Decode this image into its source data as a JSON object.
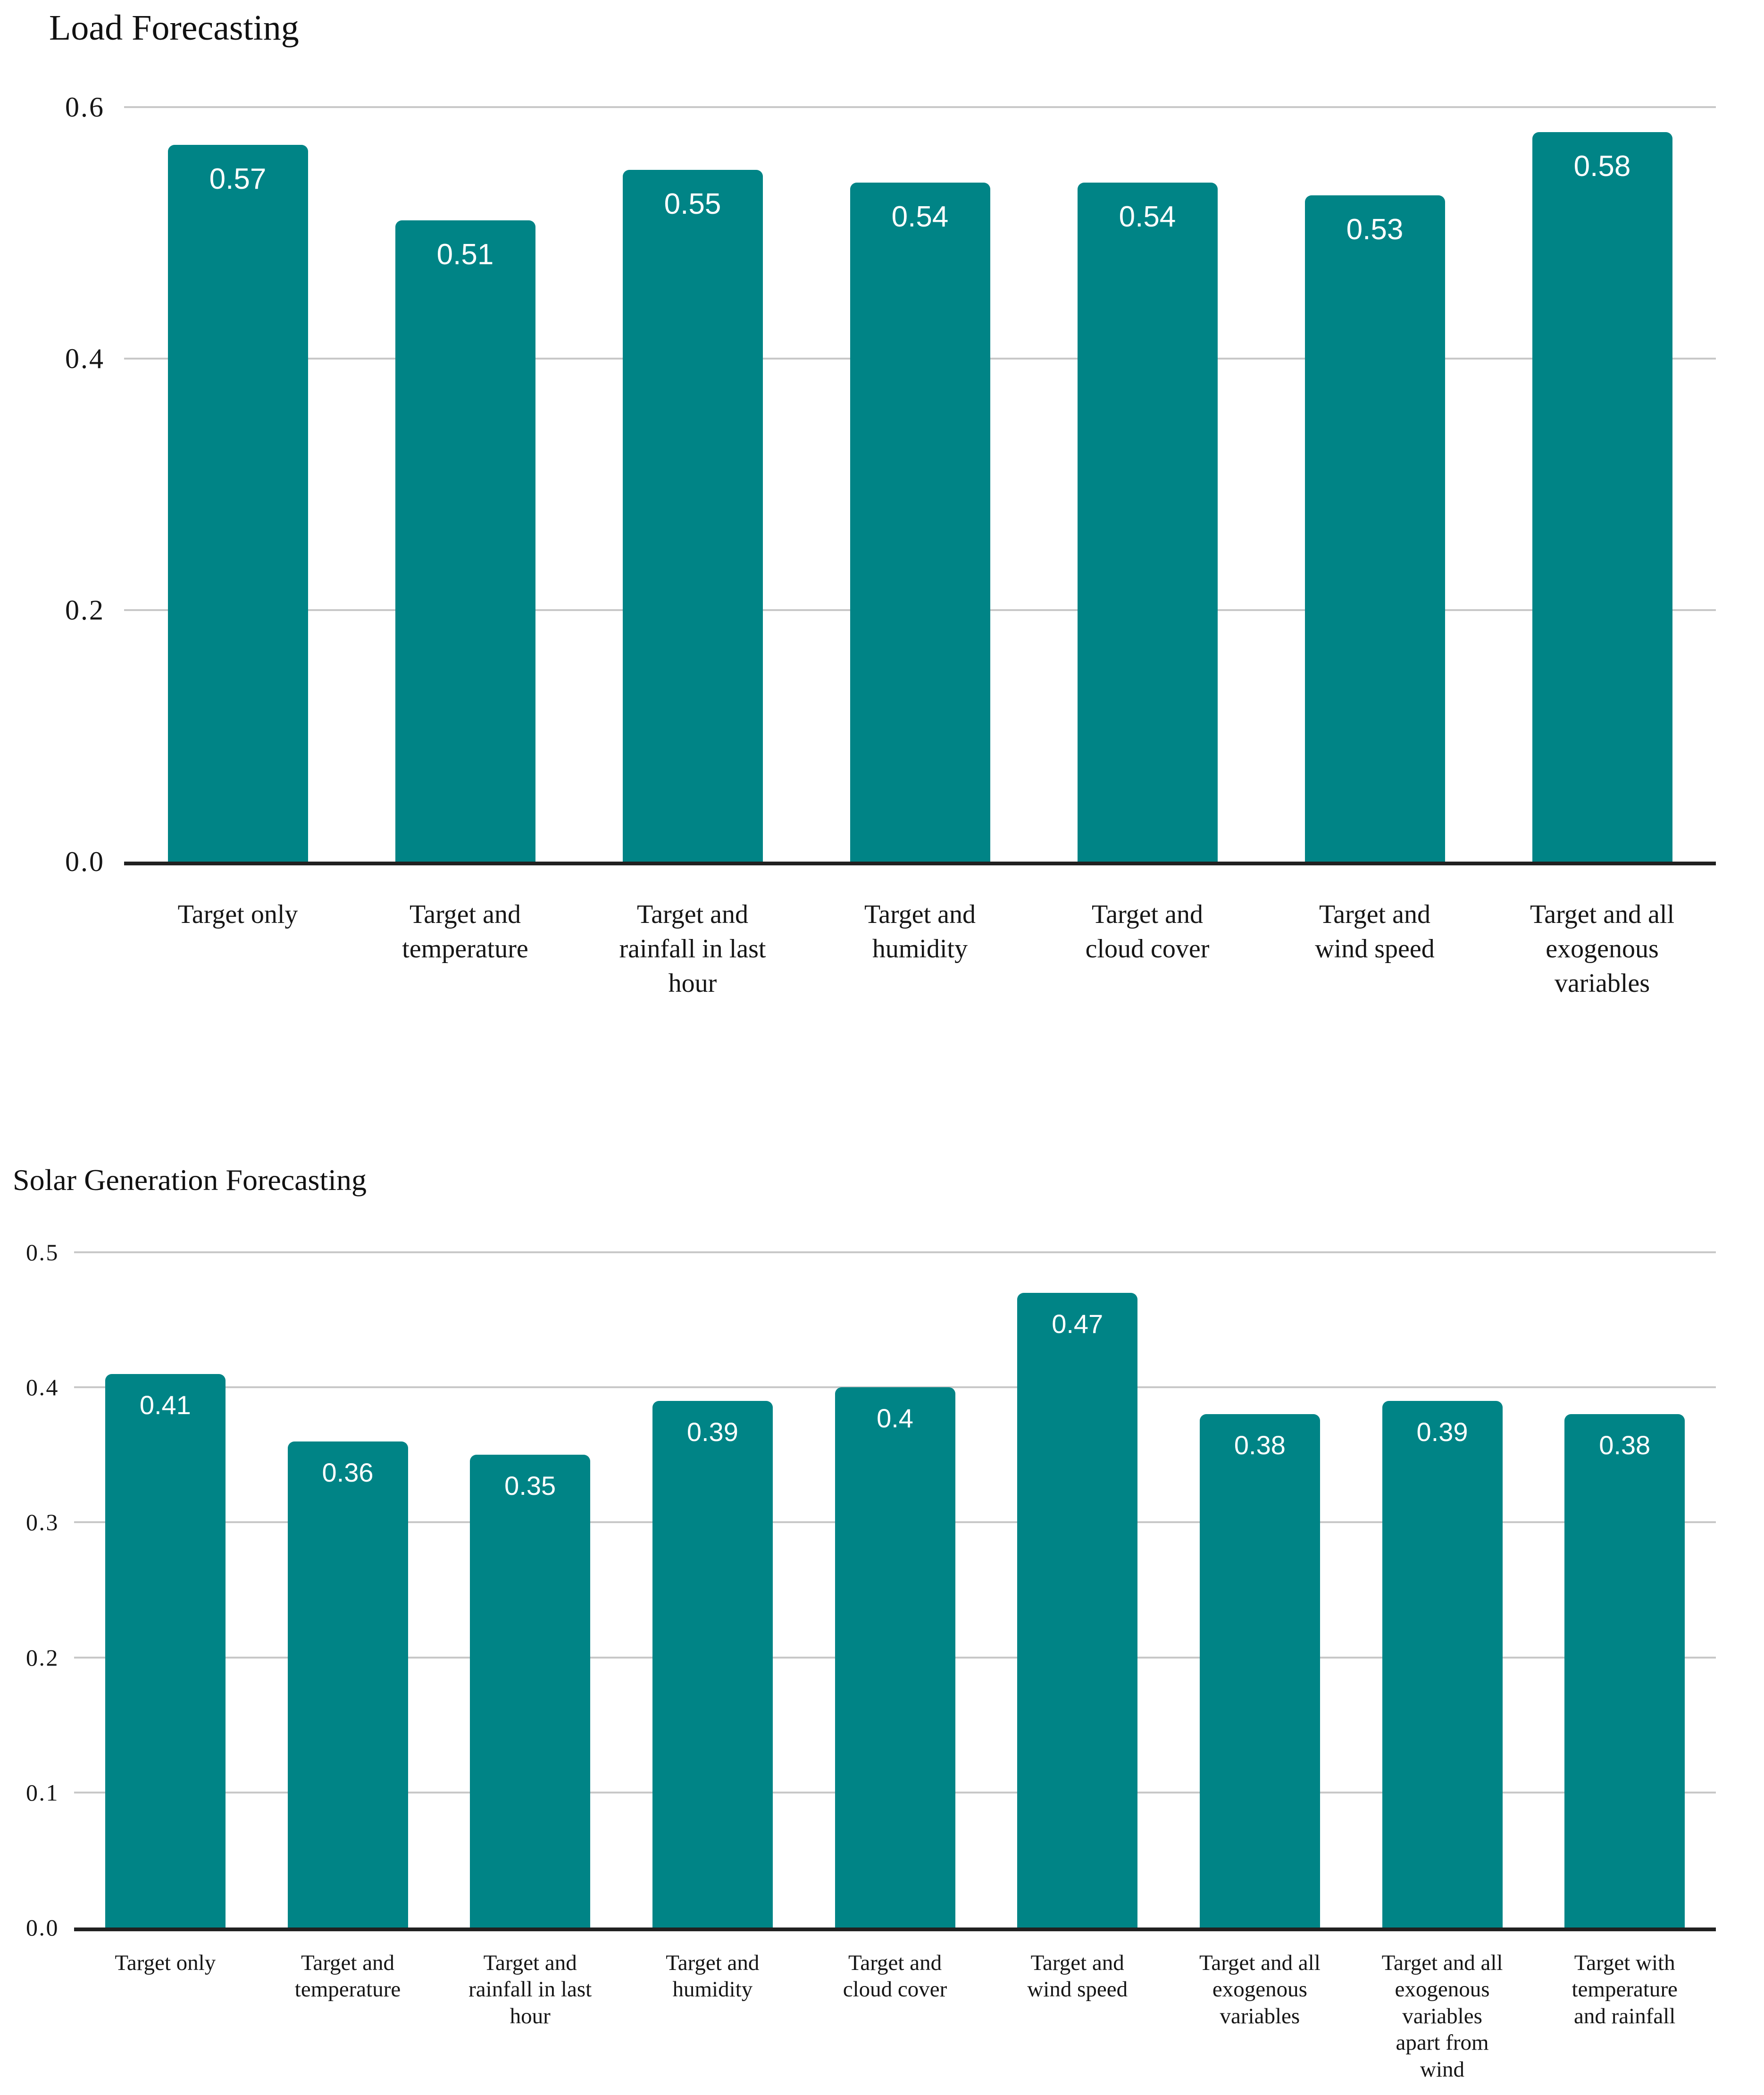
{
  "page": {
    "background_color": "#ffffff",
    "text_color": "#161616",
    "gridline_color": "#c8c8c8",
    "axis_line_color": "#212121"
  },
  "chart_data": [
    {
      "type": "bar",
      "title": "Load Forecasting",
      "bar_color": "#008486",
      "value_label_color": "#ffffff",
      "ylim": [
        0,
        0.6
      ],
      "yticks": [
        "0.6",
        "0.4",
        "0.2",
        "0.0"
      ],
      "grid": true,
      "legend": false,
      "xlabel": "",
      "ylabel": "",
      "categories": [
        "Target only",
        "Target and\ntemperature",
        "Target and\nrainfall in last\nhour",
        "Target and\nhumidity",
        "Target and\ncloud cover",
        "Target and\nwind speed",
        "Target and all\nexogenous\nvariables"
      ],
      "values": [
        0.57,
        0.51,
        0.55,
        0.54,
        0.54,
        0.53,
        0.58
      ],
      "value_labels": [
        "0.57",
        "0.51",
        "0.55",
        "0.54",
        "0.54",
        "0.53",
        "0.58"
      ]
    },
    {
      "type": "bar",
      "title": "Solar Generation Forecasting",
      "bar_color": "#008486",
      "value_label_color": "#ffffff",
      "ylim": [
        0,
        0.5
      ],
      "yticks": [
        "0.5",
        "0.4",
        "0.3",
        "0.2",
        "0.1",
        "0.0"
      ],
      "grid": true,
      "legend": false,
      "xlabel": "",
      "ylabel": "",
      "categories": [
        "Target only",
        "Target and\ntemperature",
        "Target and\nrainfall in last\nhour",
        "Target and\nhumidity",
        "Target and\ncloud cover",
        "Target and\nwind speed",
        "Target and all\nexogenous\nvariables",
        "Target and all\nexogenous\nvariables\napart from\nwind",
        "Target with\ntemperature\nand rainfall"
      ],
      "values": [
        0.41,
        0.36,
        0.35,
        0.39,
        0.4,
        0.47,
        0.38,
        0.39,
        0.38
      ],
      "value_labels": [
        "0.41",
        "0.36",
        "0.35",
        "0.39",
        "0.4",
        "0.47",
        "0.38",
        "0.39",
        "0.38"
      ]
    }
  ]
}
